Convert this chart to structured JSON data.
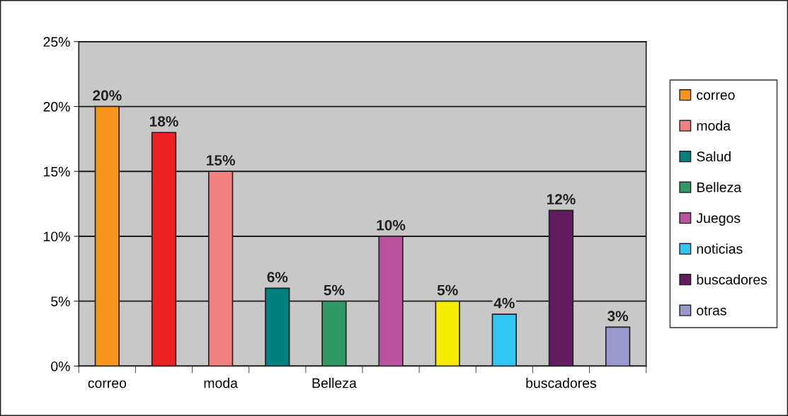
{
  "chart_data": {
    "type": "bar",
    "stacked": true,
    "categories": [
      "correo",
      null,
      "moda",
      null,
      "Belleza",
      null,
      null,
      null,
      "buscadores",
      null
    ],
    "series": [
      {
        "name": "correo",
        "color": "#f7941d",
        "values": [
          20,
          null,
          null,
          null,
          null,
          null,
          null,
          null,
          null,
          null
        ],
        "value_labels": [
          "20%",
          null,
          null,
          null,
          null,
          null,
          null,
          null,
          null,
          null
        ]
      },
      {
        "color": "#ed2024",
        "values": [
          null,
          18,
          null,
          null,
          null,
          null,
          null,
          null,
          null,
          null
        ],
        "value_labels": [
          null,
          "18%",
          null,
          null,
          null,
          null,
          null,
          null,
          null,
          null
        ]
      },
      {
        "name": "moda",
        "color": "#f28080",
        "values": [
          null,
          null,
          15,
          null,
          null,
          null,
          null,
          null,
          null,
          null
        ],
        "value_labels": [
          null,
          null,
          "15%",
          null,
          null,
          null,
          null,
          null,
          null,
          null
        ]
      },
      {
        "name": "Salud",
        "color": "#007f7f",
        "values": [
          null,
          null,
          null,
          6,
          null,
          null,
          null,
          null,
          null,
          null
        ],
        "value_labels": [
          null,
          null,
          null,
          "6%",
          null,
          null,
          null,
          null,
          null,
          null
        ]
      },
      {
        "name": "Belleza",
        "color": "#2e9966",
        "values": [
          null,
          null,
          null,
          null,
          5,
          null,
          null,
          null,
          null,
          null
        ],
        "value_labels": [
          null,
          null,
          null,
          null,
          "5%",
          null,
          null,
          null,
          null,
          null
        ]
      },
      {
        "name": "Juegos",
        "color": "#b953a0",
        "values": [
          null,
          null,
          null,
          null,
          null,
          10,
          null,
          null,
          null,
          null
        ],
        "value_labels": [
          null,
          null,
          null,
          null,
          null,
          "10%",
          null,
          null,
          null,
          null
        ]
      },
      {
        "color": "#f5ed00",
        "values": [
          null,
          null,
          null,
          null,
          null,
          null,
          5,
          null,
          null,
          null
        ],
        "value_labels": [
          null,
          null,
          null,
          null,
          null,
          null,
          "5%",
          null,
          null,
          null
        ]
      },
      {
        "name": "noticias",
        "color": "#33c6f2",
        "values": [
          null,
          null,
          null,
          null,
          null,
          null,
          null,
          4,
          null,
          null
        ],
        "value_labels": [
          null,
          null,
          null,
          null,
          null,
          null,
          null,
          "4%",
          null,
          null
        ]
      },
      {
        "name": "buscadores",
        "color": "#611d60",
        "values": [
          null,
          null,
          null,
          null,
          null,
          null,
          null,
          null,
          12,
          null
        ],
        "value_labels": [
          null,
          null,
          null,
          null,
          null,
          null,
          null,
          null,
          "12%",
          null
        ]
      },
      {
        "name": "otras",
        "color": "#9999cc",
        "values": [
          null,
          null,
          null,
          null,
          null,
          null,
          null,
          null,
          null,
          3
        ],
        "value_labels": [
          null,
          null,
          null,
          null,
          null,
          null,
          null,
          null,
          null,
          "3%"
        ]
      }
    ],
    "ylim": [
      0,
      25
    ],
    "yticks": [
      {
        "value": 0,
        "label": "0%"
      },
      {
        "value": 5,
        "label": "5%"
      },
      {
        "value": 10,
        "label": "10%"
      },
      {
        "value": 15,
        "label": "15%"
      },
      {
        "value": 20,
        "label": "20%"
      },
      {
        "value": 25,
        "label": "25%"
      }
    ],
    "grid": "y",
    "legend": "right"
  }
}
